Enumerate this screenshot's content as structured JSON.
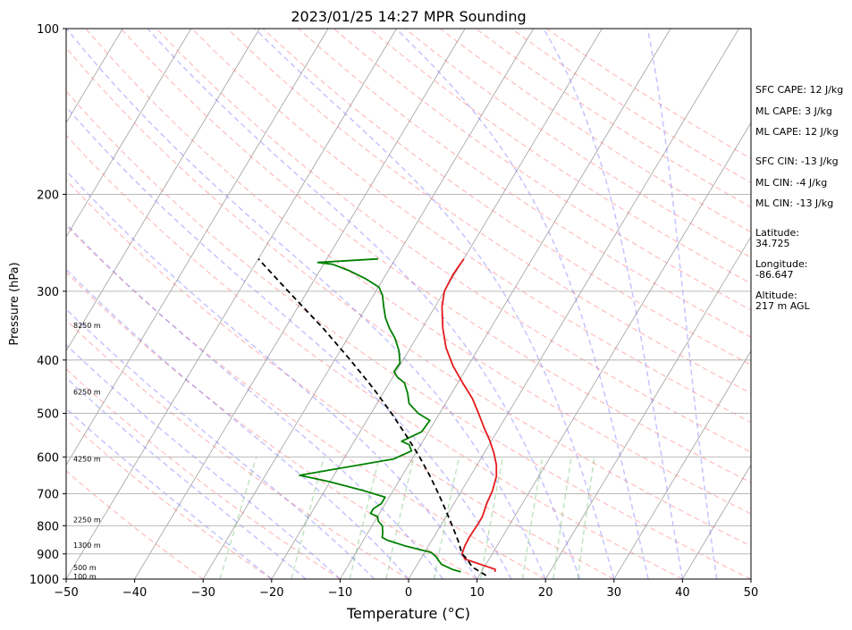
{
  "chart_data": {
    "type": "line",
    "subtype": "skew-t log-p sounding",
    "title": "2023/01/25 14:27 MPR Sounding",
    "xlabel": "Temperature (°C)",
    "ylabel": "Pressure (hPa)",
    "xlim": [
      -50,
      50
    ],
    "ylim": [
      1000,
      100
    ],
    "yscale": "log",
    "x_ticks": [
      "−50",
      "−40",
      "−30",
      "−20",
      "−10",
      "0",
      "10",
      "20",
      "30",
      "40",
      "50"
    ],
    "y_ticks": [
      "100",
      "200",
      "300",
      "400",
      "500",
      "600",
      "700",
      "800",
      "900",
      "1000"
    ],
    "grid": true,
    "series": [
      {
        "color": "#e31a1c",
        "style": "solid",
        "points": [
          {
            "p": 970,
            "t": 12.0
          },
          {
            "p": 960,
            "t": 11.8
          },
          {
            "p": 950,
            "t": 10.5
          },
          {
            "p": 935,
            "t": 8.5
          },
          {
            "p": 920,
            "t": 6.5
          },
          {
            "p": 900,
            "t": 5.6
          },
          {
            "p": 870,
            "t": 5.3
          },
          {
            "p": 840,
            "t": 5.2
          },
          {
            "p": 800,
            "t": 5.3
          },
          {
            "p": 770,
            "t": 5.3
          },
          {
            "p": 730,
            "t": 4.8
          },
          {
            "p": 690,
            "t": 4.5
          },
          {
            "p": 650,
            "t": 3.8
          },
          {
            "p": 620,
            "t": 2.8
          },
          {
            "p": 590,
            "t": 1.4
          },
          {
            "p": 560,
            "t": -0.3
          },
          {
            "p": 530,
            "t": -2.3
          },
          {
            "p": 500,
            "t": -4.3
          },
          {
            "p": 470,
            "t": -6.5
          },
          {
            "p": 440,
            "t": -9.3
          },
          {
            "p": 410,
            "t": -12.2
          },
          {
            "p": 380,
            "t": -14.8
          },
          {
            "p": 350,
            "t": -17.0
          },
          {
            "p": 320,
            "t": -19.0
          },
          {
            "p": 300,
            "t": -20.0
          },
          {
            "p": 280,
            "t": -20.2
          },
          {
            "p": 262,
            "t": -20.0
          }
        ]
      },
      {
        "color": "#008000",
        "style": "solid",
        "points": [
          {
            "p": 970,
            "t": 7.0
          },
          {
            "p": 960,
            "t": 5.5
          },
          {
            "p": 940,
            "t": 3.5
          },
          {
            "p": 910,
            "t": 2.0
          },
          {
            "p": 895,
            "t": 1.0
          },
          {
            "p": 870,
            "t": -3.5
          },
          {
            "p": 850,
            "t": -6.5
          },
          {
            "p": 840,
            "t": -7.5
          },
          {
            "p": 825,
            "t": -7.8
          },
          {
            "p": 800,
            "t": -8.5
          },
          {
            "p": 785,
            "t": -9.5
          },
          {
            "p": 770,
            "t": -10.0
          },
          {
            "p": 760,
            "t": -11.3
          },
          {
            "p": 745,
            "t": -11.3
          },
          {
            "p": 730,
            "t": -10.6
          },
          {
            "p": 710,
            "t": -10.6
          },
          {
            "p": 690,
            "t": -14.5
          },
          {
            "p": 665,
            "t": -20.2
          },
          {
            "p": 648,
            "t": -25.0
          },
          {
            "p": 630,
            "t": -20.0
          },
          {
            "p": 605,
            "t": -12.7
          },
          {
            "p": 585,
            "t": -10.8
          },
          {
            "p": 570,
            "t": -11.7
          },
          {
            "p": 562,
            "t": -13.1
          },
          {
            "p": 540,
            "t": -11.0
          },
          {
            "p": 515,
            "t": -10.8
          },
          {
            "p": 500,
            "t": -13.1
          },
          {
            "p": 480,
            "t": -15.3
          },
          {
            "p": 460,
            "t": -16.4
          },
          {
            "p": 440,
            "t": -17.8
          },
          {
            "p": 430,
            "t": -19.3
          },
          {
            "p": 420,
            "t": -20.3
          },
          {
            "p": 405,
            "t": -20.2
          },
          {
            "p": 385,
            "t": -21.4
          },
          {
            "p": 365,
            "t": -23.1
          },
          {
            "p": 350,
            "t": -24.8
          },
          {
            "p": 335,
            "t": -26.3
          },
          {
            "p": 320,
            "t": -27.5
          },
          {
            "p": 305,
            "t": -28.7
          },
          {
            "p": 295,
            "t": -29.9
          },
          {
            "p": 285,
            "t": -32.5
          },
          {
            "p": 275,
            "t": -35.8
          },
          {
            "p": 268,
            "t": -38.7
          },
          {
            "p": 266,
            "t": -41.0
          },
          {
            "p": 262,
            "t": -32.5
          }
        ]
      },
      {
        "color": "#000000",
        "style": "dashed",
        "points": [
          {
            "p": 985,
            "t": 11.0
          },
          {
            "p": 950,
            "t": 8.2
          },
          {
            "p": 920,
            "t": 6.8
          },
          {
            "p": 900,
            "t": 5.6
          },
          {
            "p": 850,
            "t": 3.8
          },
          {
            "p": 800,
            "t": 1.7
          },
          {
            "p": 750,
            "t": -0.6
          },
          {
            "p": 700,
            "t": -3.1
          },
          {
            "p": 650,
            "t": -5.9
          },
          {
            "p": 600,
            "t": -9.1
          },
          {
            "p": 550,
            "t": -12.8
          },
          {
            "p": 500,
            "t": -17.0
          },
          {
            "p": 450,
            "t": -21.9
          },
          {
            "p": 400,
            "t": -27.7
          },
          {
            "p": 350,
            "t": -34.5
          },
          {
            "p": 300,
            "t": -42.8
          },
          {
            "p": 262,
            "t": -50.0
          }
        ]
      }
    ],
    "height_labels": [
      {
        "text": "100 m",
        "p": 988
      },
      {
        "text": "500 m",
        "p": 952
      },
      {
        "text": "1300 m",
        "p": 868
      },
      {
        "text": "2250 m",
        "p": 780
      },
      {
        "text": "4250 m",
        "p": 605
      },
      {
        "text": "6250 m",
        "p": 457
      },
      {
        "text": "8250 m",
        "p": 346
      }
    ],
    "side_stats": [
      "SFC CAPE: 12 J/kg",
      "ML CAPE: 3 J/kg",
      "ML CAPE: 12 J/kg",
      "SFC CIN: -13 J/kg",
      "ML CIN: -4 J/kg",
      "ML CIN: -13 J/kg",
      "Latitude:",
      "34.725",
      "Longitude:",
      "-86.647",
      "Altitude:",
      "217 m AGL"
    ],
    "reference_lines": {
      "isotherm_color": "#a0a0a0",
      "dry_adiabat_color": "#ff6b6b",
      "moist_adiabat_color": "#5555ff",
      "mixing_ratio_color": "#2ca02c"
    }
  }
}
